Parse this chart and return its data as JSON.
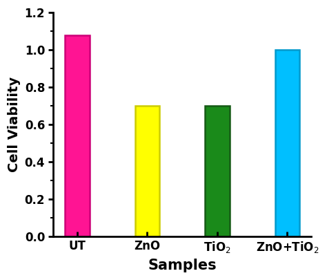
{
  "categories": [
    "UT",
    "ZnO",
    "TiO$_2$",
    "ZnO+TiO$_2$"
  ],
  "values": [
    1.08,
    0.7,
    0.7,
    1.0
  ],
  "bar_colors": [
    "#FF1493",
    "#FFFF00",
    "#1A8A1A",
    "#00BFFF"
  ],
  "bar_edgecolors": [
    "#CC0077",
    "#CCCC00",
    "#155A15",
    "#0099CC"
  ],
  "xlabel": "Samples",
  "ylabel": "Cell Viability",
  "ylim": [
    0.0,
    1.2
  ],
  "yticks": [
    0.0,
    0.2,
    0.4,
    0.6,
    0.8,
    1.0,
    1.2
  ],
  "xlabel_fontsize": 15,
  "ylabel_fontsize": 14,
  "tick_fontsize": 12,
  "bar_width": 0.35,
  "spine_linewidth": 2.0,
  "tick_linewidth": 2.0,
  "figure_width": 4.74,
  "figure_height": 4.05,
  "dpi": 100
}
